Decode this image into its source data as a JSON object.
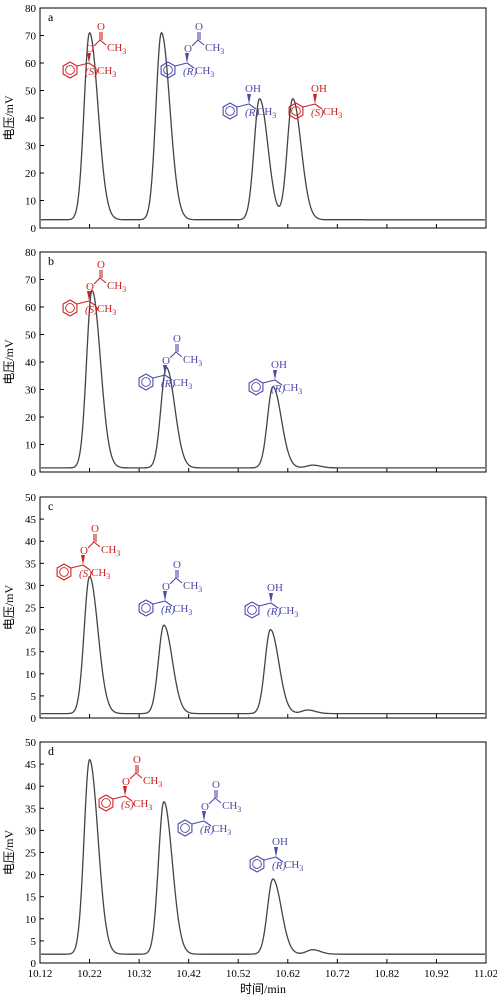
{
  "colors": {
    "S": "#cc2222",
    "R": "#4a4aa8",
    "trace": "#444444",
    "axis": "#000000"
  },
  "x_ticks": [
    "10.12",
    "10.22",
    "10.32",
    "10.42",
    "10.52",
    "10.62",
    "10.72",
    "10.82",
    "10.92",
    "11.02"
  ],
  "x_label": "时间/min",
  "chart_data": [
    {
      "type": "line",
      "panel": "a",
      "ylabel": "电压/mV",
      "xlim": [
        10.12,
        11.02
      ],
      "ylim": [
        0,
        80
      ],
      "y_ticks": [
        "0",
        "10",
        "20",
        "30",
        "40",
        "50",
        "60",
        "70",
        "80"
      ],
      "baseline": 3,
      "peaks": [
        {
          "rt": 10.22,
          "height": 71,
          "compound": "(S)-1-phenylethyl acetate",
          "config": "S",
          "kind": "acetate"
        },
        {
          "rt": 10.365,
          "height": 71,
          "compound": "(R)-1-phenylethyl acetate",
          "config": "R",
          "kind": "acetate"
        },
        {
          "rt": 10.563,
          "height": 47,
          "compound": "(R)-1-phenylethanol",
          "config": "R",
          "kind": "alcohol"
        },
        {
          "rt": 10.63,
          "height": 47,
          "compound": "(S)-1-phenylethanol",
          "config": "S",
          "kind": "alcohol"
        }
      ],
      "labels": [
        {
          "config": "S",
          "kind": "acetate",
          "text": "(S)"
        },
        {
          "config": "R",
          "kind": "acetate",
          "text": "(R)"
        },
        {
          "config": "R",
          "kind": "alcohol",
          "text": "(R)"
        },
        {
          "config": "S",
          "kind": "alcohol",
          "text": "(S)"
        }
      ]
    },
    {
      "type": "line",
      "panel": "b",
      "ylabel": "电压/mV",
      "xlim": [
        10.12,
        11.02
      ],
      "ylim": [
        0,
        80
      ],
      "y_ticks": [
        "0",
        "10",
        "20",
        "30",
        "40",
        "50",
        "60",
        "70",
        "80"
      ],
      "baseline": 1.5,
      "peaks": [
        {
          "rt": 10.225,
          "height": 66,
          "compound": "(S)-1-phenylethyl acetate",
          "config": "S",
          "kind": "acetate"
        },
        {
          "rt": 10.375,
          "height": 38,
          "compound": "(R)-1-phenylethyl acetate",
          "config": "R",
          "kind": "acetate"
        },
        {
          "rt": 10.59,
          "height": 31,
          "compound": "(R)-1-phenylethanol",
          "config": "R",
          "kind": "alcohol"
        },
        {
          "rt": 10.67,
          "height": 2.5,
          "compound": "",
          "config": "",
          "kind": "minor"
        }
      ],
      "labels": [
        {
          "config": "S",
          "kind": "acetate",
          "text": "(S)"
        },
        {
          "config": "R",
          "kind": "acetate",
          "text": "(R)"
        },
        {
          "config": "R",
          "kind": "alcohol",
          "text": "(R)"
        }
      ]
    },
    {
      "type": "line",
      "panel": "c",
      "ylabel": "电压/mV",
      "xlim": [
        10.12,
        11.02
      ],
      "ylim": [
        0,
        50
      ],
      "y_ticks": [
        "0",
        "5",
        "10",
        "15",
        "20",
        "25",
        "30",
        "35",
        "40",
        "45",
        "50"
      ],
      "baseline": 1,
      "peaks": [
        {
          "rt": 10.22,
          "height": 32,
          "compound": "(S)-1-phenylethyl acetate",
          "config": "S",
          "kind": "acetate"
        },
        {
          "rt": 10.37,
          "height": 21,
          "compound": "(R)-1-phenylethyl acetate",
          "config": "R",
          "kind": "acetate"
        },
        {
          "rt": 10.585,
          "height": 20,
          "compound": "(R)-1-phenylethanol",
          "config": "R",
          "kind": "alcohol"
        },
        {
          "rt": 10.66,
          "height": 1.8,
          "compound": "",
          "config": "",
          "kind": "minor"
        }
      ],
      "labels": [
        {
          "config": "S",
          "kind": "acetate",
          "text": "(S)"
        },
        {
          "config": "R",
          "kind": "acetate",
          "text": "(R)"
        },
        {
          "config": "R",
          "kind": "alcohol",
          "text": "(R)"
        }
      ]
    },
    {
      "type": "line",
      "panel": "d",
      "ylabel": "电压/mV",
      "xlim": [
        10.12,
        11.02
      ],
      "ylim": [
        0,
        50
      ],
      "y_ticks": [
        "0",
        "5",
        "10",
        "15",
        "20",
        "25",
        "30",
        "35",
        "40",
        "45",
        "50"
      ],
      "baseline": 2,
      "peaks": [
        {
          "rt": 10.22,
          "height": 46,
          "compound": "(S)-1-phenylethyl acetate",
          "config": "S",
          "kind": "acetate"
        },
        {
          "rt": 10.37,
          "height": 36.5,
          "compound": "(R)-1-phenylethyl acetate",
          "config": "R",
          "kind": "acetate"
        },
        {
          "rt": 10.59,
          "height": 19,
          "compound": "(R)-1-phenylethanol",
          "config": "R",
          "kind": "alcohol"
        },
        {
          "rt": 10.67,
          "height": 3,
          "compound": "",
          "config": "",
          "kind": "minor"
        }
      ],
      "labels": [
        {
          "config": "S",
          "kind": "acetate",
          "text": "(S)"
        },
        {
          "config": "R",
          "kind": "acetate",
          "text": "(R)"
        },
        {
          "config": "R",
          "kind": "alcohol",
          "text": "(R)"
        }
      ]
    }
  ],
  "molecule_text": {
    "oxygen": "O",
    "ch3": "CH",
    "ch3_sub": "3",
    "oh": "OH"
  }
}
